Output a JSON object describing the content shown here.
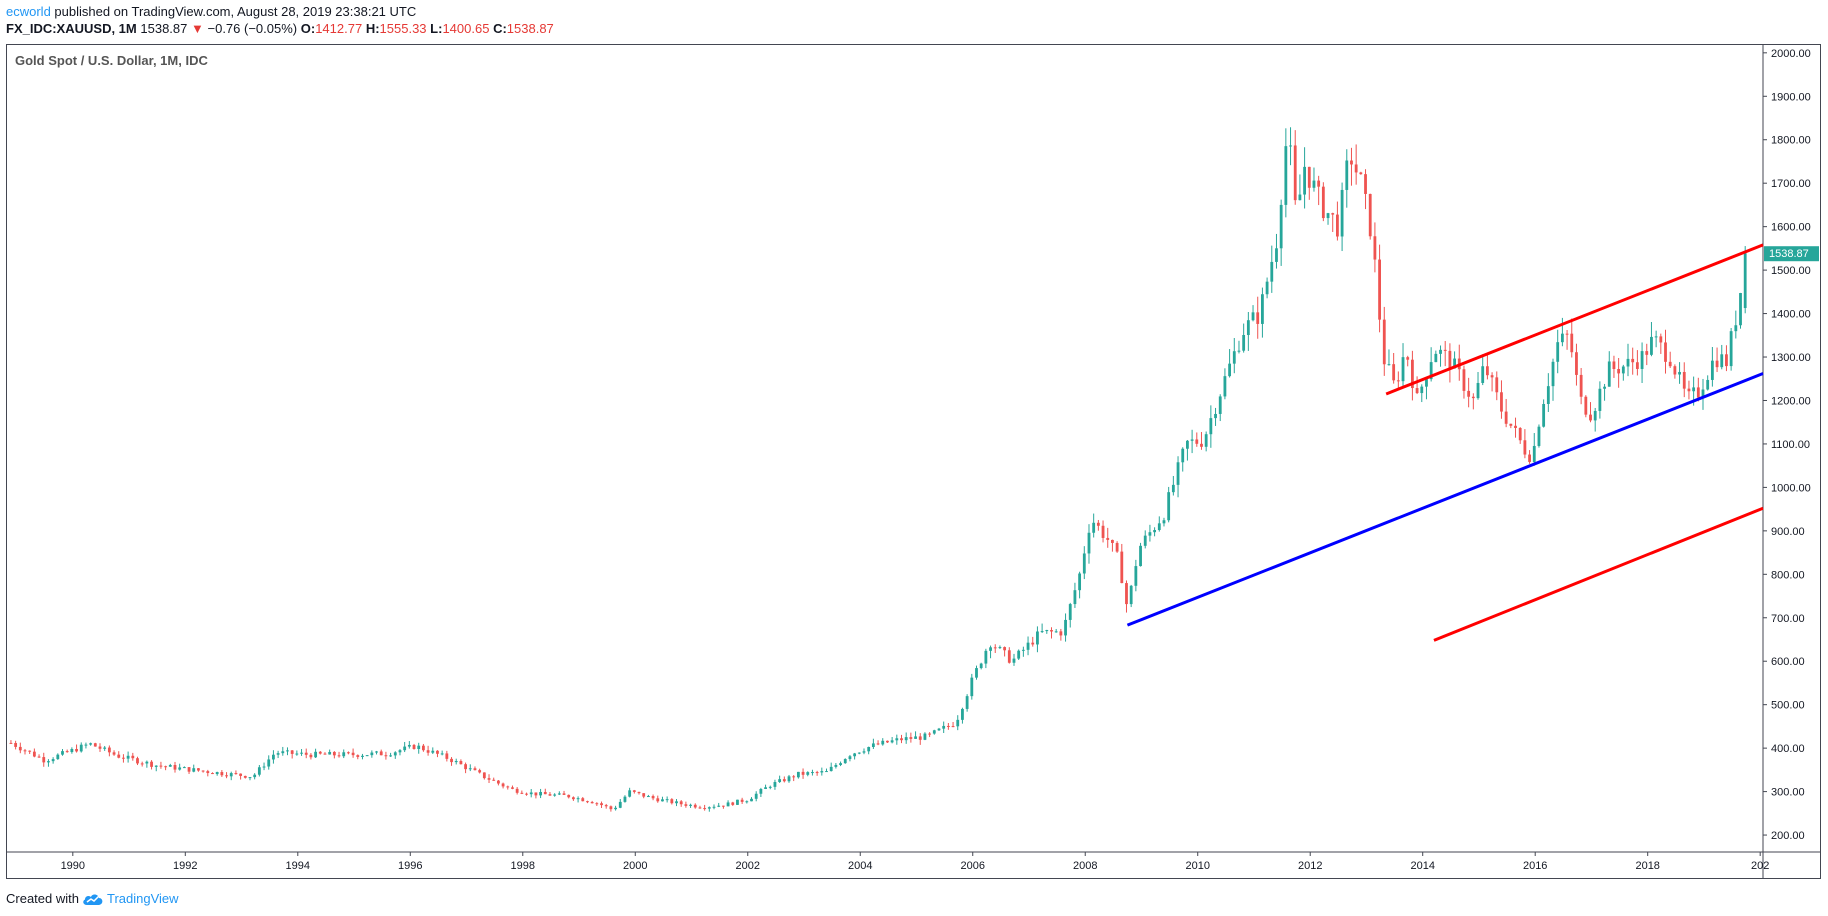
{
  "header": {
    "author": "ecworld",
    "published_text": " published on TradingView.com, August 28, 2019 23:38:21 UTC",
    "symbol": "FX_IDC:XAUUSD, 1M",
    "last": "1538.87",
    "change_arrow": "▼",
    "change": "−0.76 (−0.05%)",
    "open_label": "O:",
    "open": "1412.77",
    "high_label": "H:",
    "high": "1555.33",
    "low_label": "L:",
    "low": "1400.65",
    "close_label": "C:",
    "close": "1538.87"
  },
  "footer": {
    "created_with": "Created with",
    "brand": "TradingView",
    "brand_icon": "tradingview-cloud-icon"
  },
  "chart_data": {
    "type": "candlestick",
    "title": "Gold Spot / U.S. Dollar, 1M, IDC",
    "x_ticks": [
      "1990",
      "1992",
      "1994",
      "1996",
      "1998",
      "2000",
      "2002",
      "2004",
      "2006",
      "2008",
      "2010",
      "2012",
      "2014",
      "2016",
      "2018",
      "202"
    ],
    "y_ticks": [
      "200.00",
      "300.00",
      "400.00",
      "500.00",
      "600.00",
      "700.00",
      "800.00",
      "900.00",
      "1000.00",
      "1100.00",
      "1200.00",
      "1300.00",
      "1400.00",
      "1500.00",
      "1600.00",
      "1700.00",
      "1800.00",
      "1900.00",
      "2000.00"
    ],
    "xlim": [
      1988.83,
      2020.05
    ],
    "ylim": [
      161,
      2018
    ],
    "last_price_label": "1538.87",
    "colors": {
      "up": "#26a69a",
      "down": "#ef5350",
      "price_label": "#26a69a",
      "channel": "#ff0000",
      "trendline": "#0000ff"
    },
    "price_path": [
      [
        1988.9,
        412
      ],
      [
        1989.5,
        372
      ],
      [
        1990.0,
        395
      ],
      [
        1990.3,
        410
      ],
      [
        1990.8,
        382
      ],
      [
        1991.5,
        360
      ],
      [
        1992.0,
        352
      ],
      [
        1992.8,
        340
      ],
      [
        1993.2,
        335
      ],
      [
        1993.6,
        390
      ],
      [
        1994.2,
        385
      ],
      [
        1995.0,
        385
      ],
      [
        1995.6,
        388
      ],
      [
        1996.1,
        405
      ],
      [
        1996.7,
        375
      ],
      [
        1997.3,
        335
      ],
      [
        1997.8,
        305
      ],
      [
        1998.2,
        295
      ],
      [
        1998.8,
        290
      ],
      [
        1999.3,
        275
      ],
      [
        1999.6,
        258
      ],
      [
        1999.9,
        300
      ],
      [
        2000.3,
        285
      ],
      [
        2000.8,
        272
      ],
      [
        2001.2,
        265
      ],
      [
        2001.6,
        270
      ],
      [
        2002.0,
        282
      ],
      [
        2002.4,
        315
      ],
      [
        2002.9,
        340
      ],
      [
        2003.4,
        345
      ],
      [
        2003.8,
        385
      ],
      [
        2004.2,
        405
      ],
      [
        2004.7,
        420
      ],
      [
        2005.2,
        427
      ],
      [
        2005.7,
        460
      ],
      [
        2006.0,
        560
      ],
      [
        2006.3,
        645
      ],
      [
        2006.7,
        600
      ],
      [
        2007.2,
        665
      ],
      [
        2007.6,
        668
      ],
      [
        2007.9,
        800
      ],
      [
        2008.1,
        930
      ],
      [
        2008.4,
        880
      ],
      [
        2008.6,
        830
      ],
      [
        2008.75,
        720
      ],
      [
        2008.95,
        860
      ],
      [
        2009.4,
        940
      ],
      [
        2009.8,
        1100
      ],
      [
        2010.1,
        1110
      ],
      [
        2010.4,
        1220
      ],
      [
        2010.8,
        1360
      ],
      [
        2011.1,
        1400
      ],
      [
        2011.4,
        1570
      ],
      [
        2011.6,
        1830
      ],
      [
        2011.75,
        1620
      ],
      [
        2011.9,
        1740
      ],
      [
        2012.2,
        1650
      ],
      [
        2012.5,
        1600
      ],
      [
        2012.7,
        1770
      ],
      [
        2012.9,
        1700
      ],
      [
        2013.1,
        1580
      ],
      [
        2013.3,
        1300
      ],
      [
        2013.5,
        1230
      ],
      [
        2013.7,
        1320
      ],
      [
        2013.9,
        1200
      ],
      [
        2014.2,
        1320
      ],
      [
        2014.5,
        1290
      ],
      [
        2014.9,
        1200
      ],
      [
        2015.1,
        1280
      ],
      [
        2015.4,
        1180
      ],
      [
        2015.8,
        1090
      ],
      [
        2015.95,
        1070
      ],
      [
        2016.1,
        1180
      ],
      [
        2016.4,
        1330
      ],
      [
        2016.6,
        1350
      ],
      [
        2016.8,
        1200
      ],
      [
        2017.0,
        1170
      ],
      [
        2017.3,
        1270
      ],
      [
        2017.6,
        1280
      ],
      [
        2017.9,
        1300
      ],
      [
        2018.1,
        1340
      ],
      [
        2018.4,
        1300
      ],
      [
        2018.7,
        1200
      ],
      [
        2018.9,
        1220
      ],
      [
        2019.2,
        1300
      ],
      [
        2019.4,
        1290
      ],
      [
        2019.6,
        1410
      ],
      [
        2019.75,
        1538.87
      ]
    ],
    "drawings": [
      {
        "name": "upper-channel-line",
        "color": "#ff0000",
        "p1": [
          2013.35,
          1215
        ],
        "p2": [
          2020.05,
          1558
        ]
      },
      {
        "name": "support-trendline",
        "color": "#0000ff",
        "p1": [
          2008.75,
          683
        ],
        "p2": [
          2020.05,
          1262
        ]
      },
      {
        "name": "lower-channel-line",
        "color": "#ff0000",
        "p1": [
          2014.2,
          648
        ],
        "p2": [
          2020.05,
          952
        ]
      }
    ]
  }
}
